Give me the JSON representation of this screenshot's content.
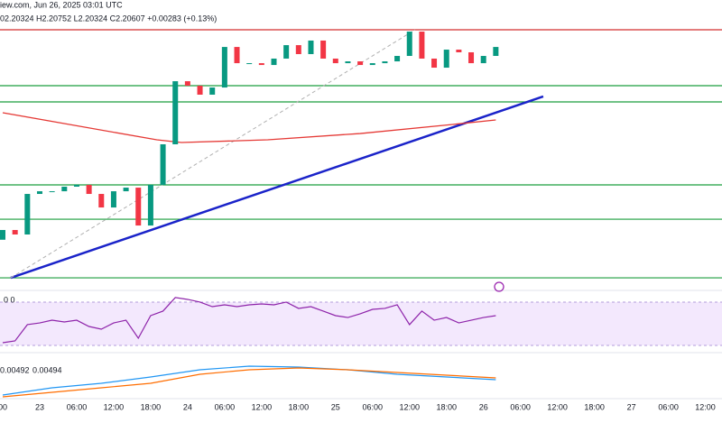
{
  "header": {
    "source": "iew.com, Jun 26, 2025 03:01 UTC",
    "ohlc": "02.20324 H2.20752 L2.20324 C2.20607 +0.00283 (+0.13%)"
  },
  "chart_data": [
    {
      "type": "candlestick",
      "xlim": [
        -0.44,
        116.7
      ],
      "ylim": [
        1.9488,
        2.2512
      ],
      "xticks": [
        {
          "value": 0,
          "label": "00"
        },
        {
          "value": 6,
          "label": "23"
        },
        {
          "value": 12,
          "label": "06:00"
        },
        {
          "value": 18,
          "label": "12:00"
        },
        {
          "value": 24,
          "label": "18:00"
        },
        {
          "value": 30,
          "label": "24"
        },
        {
          "value": 36,
          "label": "06:00"
        },
        {
          "value": 42,
          "label": "12:00"
        },
        {
          "value": 48,
          "label": "18:00"
        },
        {
          "value": 54,
          "label": "25"
        },
        {
          "value": 60,
          "label": "06:00"
        },
        {
          "value": 66,
          "label": "12:00"
        },
        {
          "value": 72,
          "label": "18:00"
        },
        {
          "value": 78,
          "label": "26"
        },
        {
          "value": 84,
          "label": "06:00"
        },
        {
          "value": 90,
          "label": "12:00"
        },
        {
          "value": 96,
          "label": "18:00"
        },
        {
          "value": 102,
          "label": "27"
        },
        {
          "value": 108,
          "label": "06:00"
        },
        {
          "value": 114,
          "label": "12:00"
        }
      ],
      "candles": {
        "x": [
          0,
          2,
          4,
          6,
          8,
          10,
          12,
          14,
          16,
          18,
          20,
          22,
          24,
          26,
          28,
          30,
          32,
          34,
          36,
          38,
          40,
          42,
          44,
          46,
          48,
          50,
          52,
          54,
          56,
          58,
          60,
          62,
          64,
          66,
          68,
          70,
          72,
          74,
          76,
          78,
          80
        ],
        "open": [
          2.0,
          2.0102,
          2.0055,
          2.048,
          2.0508,
          2.0508,
          2.0556,
          2.0575,
          2.048,
          2.0338,
          2.0508,
          2.0546,
          2.0149,
          2.0575,
          2.1,
          2.1661,
          2.1614,
          2.152,
          2.1595,
          2.202,
          2.185,
          2.185,
          2.1831,
          2.1898,
          2.2039,
          2.1945,
          2.2087,
          2.1898,
          2.185,
          2.1869,
          2.1831,
          2.185,
          2.1869,
          2.1926,
          2.2181,
          2.1898,
          2.1803,
          2.1992,
          2.1964,
          2.185,
          2.1926
        ],
        "close": [
          2.0102,
          2.0055,
          2.048,
          2.0508,
          2.0508,
          2.0556,
          2.0575,
          2.048,
          2.0338,
          2.0508,
          2.0546,
          2.0149,
          2.0575,
          2.1,
          2.1661,
          2.1614,
          2.152,
          2.1595,
          2.202,
          2.185,
          2.185,
          2.1831,
          2.1898,
          2.2039,
          2.1945,
          2.2087,
          2.1898,
          2.185,
          2.1869,
          2.1831,
          2.185,
          2.1869,
          2.1926,
          2.2181,
          2.1898,
          2.1803,
          2.1992,
          2.1964,
          2.185,
          2.1926,
          2.202
        ],
        "up_color": "#089981",
        "down_color": "#f23645"
      },
      "levels": [
        {
          "value": 2.22,
          "color": "#d32f2f"
        },
        {
          "value": 2.1614,
          "color": "#1b9e3e"
        },
        {
          "value": 2.1444,
          "color": "#1b9e3e"
        },
        {
          "value": 2.0575,
          "color": "#1b9e3e"
        },
        {
          "value": 2.0215,
          "color": "#1b9e3e"
        },
        {
          "value": 1.9601,
          "color": "#1b9e3e"
        }
      ],
      "lines": [
        {
          "x": [
            1.3,
            87.7
          ],
          "y": [
            1.9601,
            2.1501
          ],
          "color": "#1a23c9",
          "width": 2.5
        },
        {
          "x": [
            1.3,
            66.9
          ],
          "y": [
            1.9601,
            2.22
          ],
          "color": "#b0b0b0",
          "width": 1,
          "dashed": true
        },
        {
          "x": [
            0,
            25,
            29,
            43,
            58,
            73,
            80
          ],
          "y": [
            2.1331,
            2.1047,
            2.1019,
            2.1047,
            2.1113,
            2.1208,
            2.1255
          ],
          "color": "#e53935",
          "width": 1.3
        }
      ]
    },
    {
      "type": "line",
      "label": "0 0",
      "ylim": [
        24.2,
        80.8
      ],
      "band": [
        30,
        70
      ],
      "band_color": "#f3e8fd",
      "x": [
        0,
        2,
        4,
        6,
        8,
        10,
        12,
        14,
        16,
        18,
        20,
        22,
        24,
        26,
        28,
        30,
        32,
        34,
        36,
        38,
        40,
        42,
        44,
        46,
        48,
        50,
        52,
        54,
        56,
        58,
        60,
        62,
        64,
        66,
        68,
        70,
        72,
        74,
        76,
        78,
        80
      ],
      "series": [
        {
          "color": "#8e24aa",
          "values": [
            32.5,
            34.2,
            49.2,
            50.8,
            53.3,
            51.7,
            53.3,
            47.5,
            45,
            50.8,
            53.3,
            36.7,
            57.5,
            61.7,
            74.2,
            72.5,
            70,
            65.8,
            67.5,
            65.8,
            67.5,
            68.3,
            67.5,
            70,
            64.2,
            65.8,
            61.7,
            57.5,
            55.8,
            59.2,
            63.3,
            64.2,
            67.5,
            49.2,
            61.7,
            53.3,
            55.8,
            50.8,
            53.3,
            55.8,
            57.5
          ]
        }
      ]
    },
    {
      "type": "line",
      "ylim": [
        -0.01,
        0.015
      ],
      "x": [
        0,
        8,
        16,
        24,
        32,
        40,
        48,
        56,
        64,
        72,
        80
      ],
      "series": [
        {
          "name": "0.00492",
          "color": "#2196f3",
          "values": [
            -0.008,
            -0.004,
            -0.0015,
            0.002,
            0.006,
            0.008,
            0.0075,
            0.006,
            0.0035,
            0.002,
            0.0005
          ]
        },
        {
          "name": "0.00494",
          "color": "#ff6d00",
          "values": [
            -0.009,
            -0.0065,
            -0.004,
            -0.0015,
            0.0035,
            0.006,
            0.007,
            0.006,
            0.0045,
            0.003,
            0.0015
          ]
        }
      ]
    }
  ]
}
